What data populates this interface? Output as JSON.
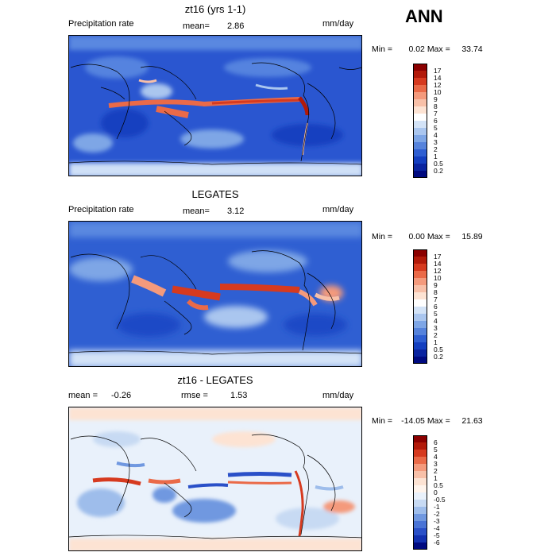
{
  "ann_label": "ANN",
  "panels": [
    {
      "title": "zt16 (yrs 1-1)",
      "left_label": "Precipitation rate",
      "center_label": "mean=",
      "center_value": "2.86",
      "units": "mm/day",
      "min_label": "Min =",
      "min_value": "0.02",
      "max_label": "Max =",
      "max_value": "33.74"
    },
    {
      "title": "LEGATES",
      "left_label": "Precipitation rate",
      "center_label": "mean=",
      "center_value": "3.12",
      "units": "mm/day",
      "min_label": "Min =",
      "min_value": "0.00",
      "max_label": "Max =",
      "max_value": "15.89"
    },
    {
      "title": "zt16 - LEGATES",
      "left_label": "mean =",
      "left_value": "-0.26",
      "center_label": "rmse =",
      "center_value": "1.53",
      "units": "mm/day",
      "min_label": "Min =",
      "min_value": "-14.05",
      "max_label": "Max =",
      "max_value": "21.63"
    }
  ],
  "colorbars": {
    "precip": {
      "ticks": [
        "17",
        "14",
        "12",
        "10",
        "9",
        "8",
        "7",
        "6",
        "5",
        "4",
        "3",
        "2",
        "1",
        "0.5",
        "0.2"
      ],
      "colors": [
        "#8b0000",
        "#b21a0a",
        "#d63a1f",
        "#ea6a48",
        "#f49a7c",
        "#f8c0a8",
        "#fde3d3",
        "#ffffff",
        "#d3e3f7",
        "#aac6ef",
        "#7ea6e6",
        "#5683dc",
        "#2f5fd2",
        "#143fc0",
        "#0a24a0",
        "#000a80"
      ]
    },
    "diff": {
      "ticks": [
        "6",
        "5",
        "4",
        "3",
        "2",
        "1",
        "0.5",
        "0",
        "-0.5",
        "-1",
        "-2",
        "-3",
        "-4",
        "-5",
        "-6"
      ],
      "colors": [
        "#8b0000",
        "#b21a0a",
        "#d63a1f",
        "#ea6a48",
        "#f49a7c",
        "#f8c0a8",
        "#fde3d3",
        "#fff4ec",
        "#e9f1fb",
        "#c7daf3",
        "#9ebdeb",
        "#7098e0",
        "#4a74d6",
        "#2a50c8",
        "#1230b0",
        "#000a80"
      ]
    }
  }
}
